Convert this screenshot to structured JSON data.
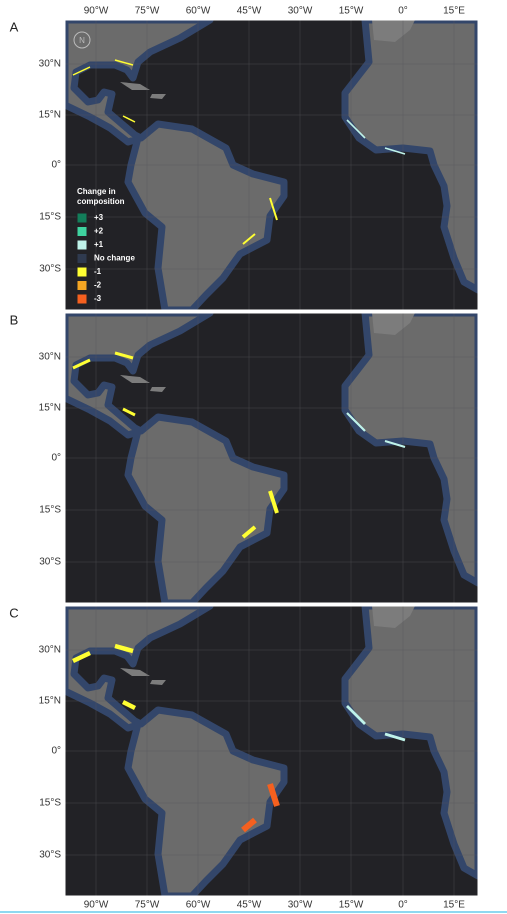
{
  "panels": [
    {
      "label": "A"
    },
    {
      "label": "B"
    },
    {
      "label": "C"
    }
  ],
  "x_axis": {
    "ticks": [
      "90°W",
      "75°W",
      "60°W",
      "45°W",
      "30°W",
      "15°W",
      "0°",
      "15°E"
    ]
  },
  "y_axis": {
    "ticks": [
      "30°N",
      "15°N",
      "0°",
      "15°S",
      "30°S"
    ]
  },
  "compass": "N",
  "legend": {
    "title": "Change in composition",
    "items": [
      {
        "label": "+3",
        "color": "#137e5a"
      },
      {
        "label": "+2",
        "color": "#3fd3a0"
      },
      {
        "label": "+1",
        "color": "#bff3ea"
      },
      {
        "label": "No change",
        "color": "#2f3a4f"
      },
      {
        "label": "-1",
        "color": "#ffff33"
      },
      {
        "label": "-2",
        "color": "#f5a623"
      },
      {
        "label": "-3",
        "color": "#f5601f"
      }
    ]
  }
}
